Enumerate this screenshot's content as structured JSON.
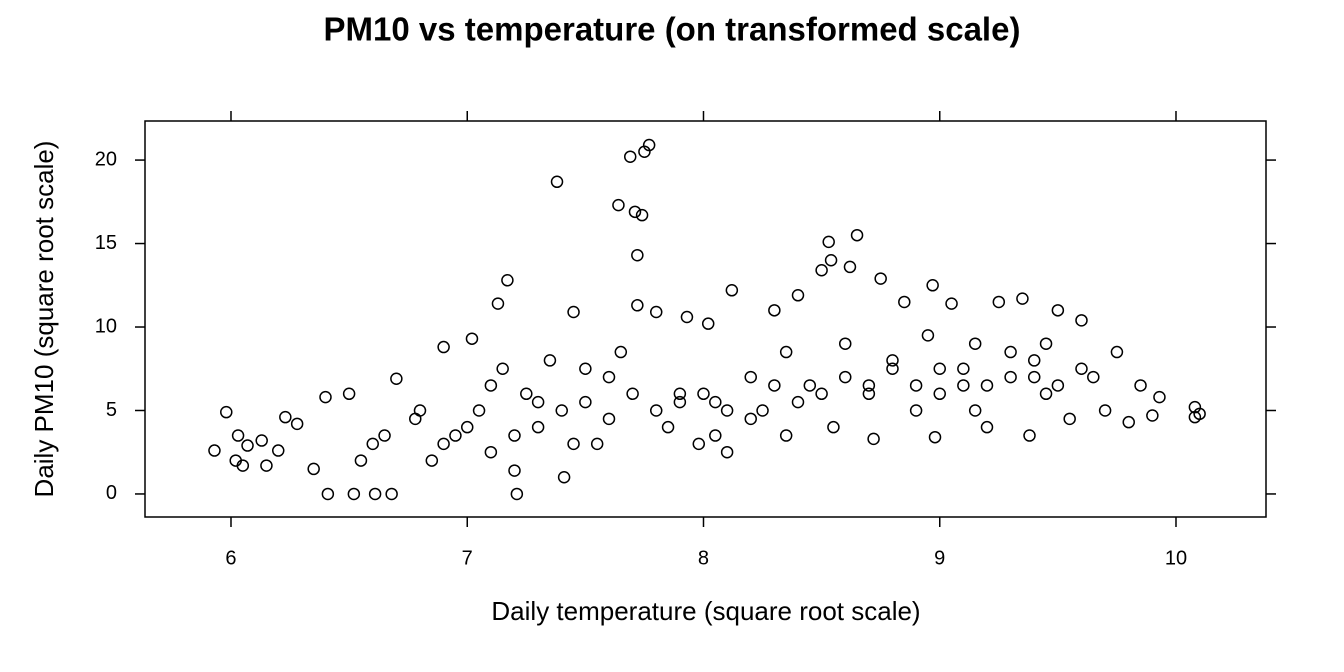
{
  "chart_data": {
    "type": "scatter",
    "title": "PM10 vs temperature (on transformed scale)",
    "x_label": "Daily temperature (square root scale)",
    "y_label": "Daily PM10 (square root scale)",
    "xlim": [
      5.636,
      10.381
    ],
    "xticks": [
      6,
      7,
      8,
      9,
      10
    ],
    "ylim": [
      -1.38,
      22.34
    ],
    "yticks": [
      0,
      5,
      10,
      15,
      20
    ],
    "color": "#000000",
    "x": [
      5.93,
      5.98,
      6.02,
      6.03,
      6.05,
      6.07,
      6.13,
      6.15,
      6.2,
      6.23,
      6.28,
      6.35,
      6.4,
      6.41,
      6.52,
      6.61,
      6.68,
      6.5,
      6.6,
      6.7,
      6.78,
      6.85,
      6.9,
      6.95,
      7.02,
      7.05,
      7.1,
      7.13,
      7.17,
      7.2,
      7.21,
      7.25,
      7.3,
      7.35,
      7.38,
      7.41,
      7.45,
      7.5,
      7.55,
      7.6,
      7.64,
      7.69,
      7.71,
      7.72,
      7.74,
      7.75,
      7.77,
      7.72,
      7.8,
      7.85,
      7.9,
      7.93,
      7.98,
      8.02,
      8.05,
      8.12,
      8.1,
      8.2,
      8.25,
      8.3,
      8.35,
      8.4,
      8.45,
      8.5,
      8.53,
      8.54,
      8.6,
      8.62,
      8.65,
      8.7,
      8.72,
      8.75,
      8.8,
      8.85,
      8.9,
      8.97,
      8.98,
      9.0,
      9.05,
      9.1,
      9.15,
      9.2,
      9.25,
      9.3,
      9.35,
      9.38,
      9.4,
      9.45,
      9.5,
      9.55,
      9.6,
      9.65,
      9.7,
      9.75,
      9.8,
      9.85,
      9.9,
      9.93,
      10.08,
      10.1,
      10.08,
      7.0,
      7.1,
      7.2,
      7.3,
      7.4,
      7.5,
      7.6,
      7.7,
      7.8,
      7.9,
      8.0,
      8.1,
      8.2,
      8.3,
      8.4,
      8.5,
      8.6,
      8.7,
      8.8,
      8.9,
      9.0,
      9.1,
      9.2,
      9.3,
      9.4,
      9.5,
      9.6,
      6.9,
      6.8,
      7.45,
      8.05,
      8.55,
      9.15,
      9.45,
      6.65,
      6.55,
      7.15,
      7.65,
      8.35,
      8.95
    ],
    "values": [
      2.6,
      4.9,
      2.0,
      3.5,
      1.7,
      2.9,
      3.2,
      1.7,
      2.6,
      4.6,
      4.2,
      1.5,
      5.8,
      0,
      0,
      0,
      0,
      6.0,
      3.0,
      6.9,
      4.5,
      2.0,
      8.8,
      3.5,
      9.3,
      5.0,
      2.5,
      11.4,
      12.8,
      1.4,
      0,
      6.0,
      4.0,
      8.0,
      18.7,
      1.0,
      10.9,
      5.5,
      3.0,
      7.0,
      17.3,
      20.2,
      16.9,
      14.3,
      16.7,
      20.5,
      20.9,
      11.3,
      10.9,
      4.0,
      6.0,
      10.6,
      3.0,
      10.2,
      5.5,
      12.2,
      2.5,
      7.0,
      5.0,
      11.0,
      3.5,
      11.9,
      6.5,
      13.4,
      15.1,
      14.0,
      9.0,
      13.6,
      15.5,
      6.5,
      3.3,
      12.9,
      8.0,
      11.5,
      5.0,
      12.5,
      3.4,
      7.5,
      11.4,
      6.5,
      9.0,
      4.0,
      11.5,
      7.0,
      11.7,
      3.5,
      8.0,
      6.0,
      11.0,
      4.5,
      10.4,
      7.0,
      5.0,
      8.5,
      4.3,
      6.5,
      4.7,
      5.8,
      5.2,
      4.8,
      4.6,
      4.0,
      6.5,
      3.5,
      5.5,
      5.0,
      7.5,
      4.5,
      6.0,
      5.0,
      5.5,
      6.0,
      5.0,
      4.5,
      6.5,
      5.5,
      6.0,
      7.0,
      6.0,
      7.5,
      6.5,
      6.0,
      7.5,
      6.5,
      8.5,
      7.0,
      6.5,
      7.5,
      3.0,
      5.0,
      3.0,
      3.5,
      4.0,
      5.0,
      9.0,
      3.5,
      2.0,
      7.5,
      8.5,
      8.5,
      9.5
    ]
  }
}
